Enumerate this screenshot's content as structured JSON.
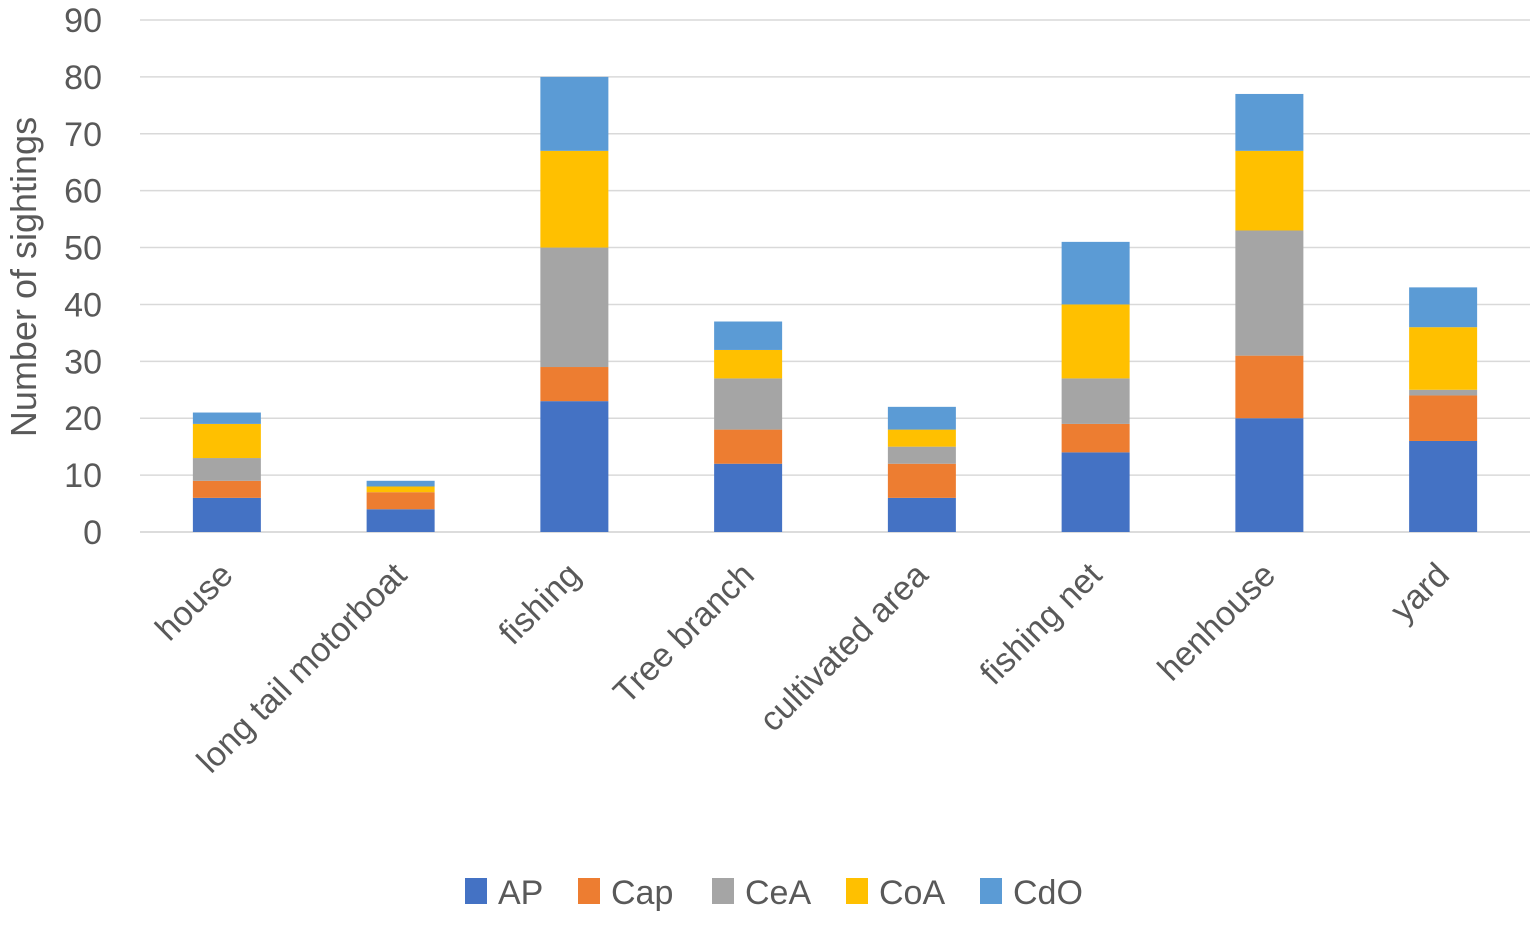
{
  "chart_data": {
    "type": "bar",
    "stacked": true,
    "title": "",
    "xlabel": "",
    "ylabel": "Number of sightings",
    "ylim": [
      0,
      90
    ],
    "yticks": [
      0,
      10,
      20,
      30,
      40,
      50,
      60,
      70,
      80,
      90
    ],
    "grid": true,
    "legend_position": "bottom",
    "categories": [
      "house",
      "long tail motorboat",
      "fishing",
      "Tree branch",
      "cultivated area",
      "fishing net",
      "henhouse",
      "yard"
    ],
    "series": [
      {
        "name": "AP",
        "color": "#4472C4",
        "values": [
          6,
          4,
          23,
          12,
          6,
          14,
          20,
          16
        ]
      },
      {
        "name": "Cap",
        "color": "#ED7D31",
        "values": [
          3,
          3,
          6,
          6,
          6,
          5,
          11,
          8
        ]
      },
      {
        "name": "CeA",
        "color": "#A5A5A5",
        "values": [
          4,
          0,
          21,
          9,
          3,
          8,
          22,
          1
        ]
      },
      {
        "name": "CoA",
        "color": "#FFC000",
        "values": [
          6,
          1,
          17,
          5,
          3,
          13,
          14,
          11
        ]
      },
      {
        "name": "CdO",
        "color": "#5B9BD5",
        "values": [
          2,
          1,
          13,
          5,
          4,
          11,
          10,
          7
        ]
      }
    ]
  }
}
